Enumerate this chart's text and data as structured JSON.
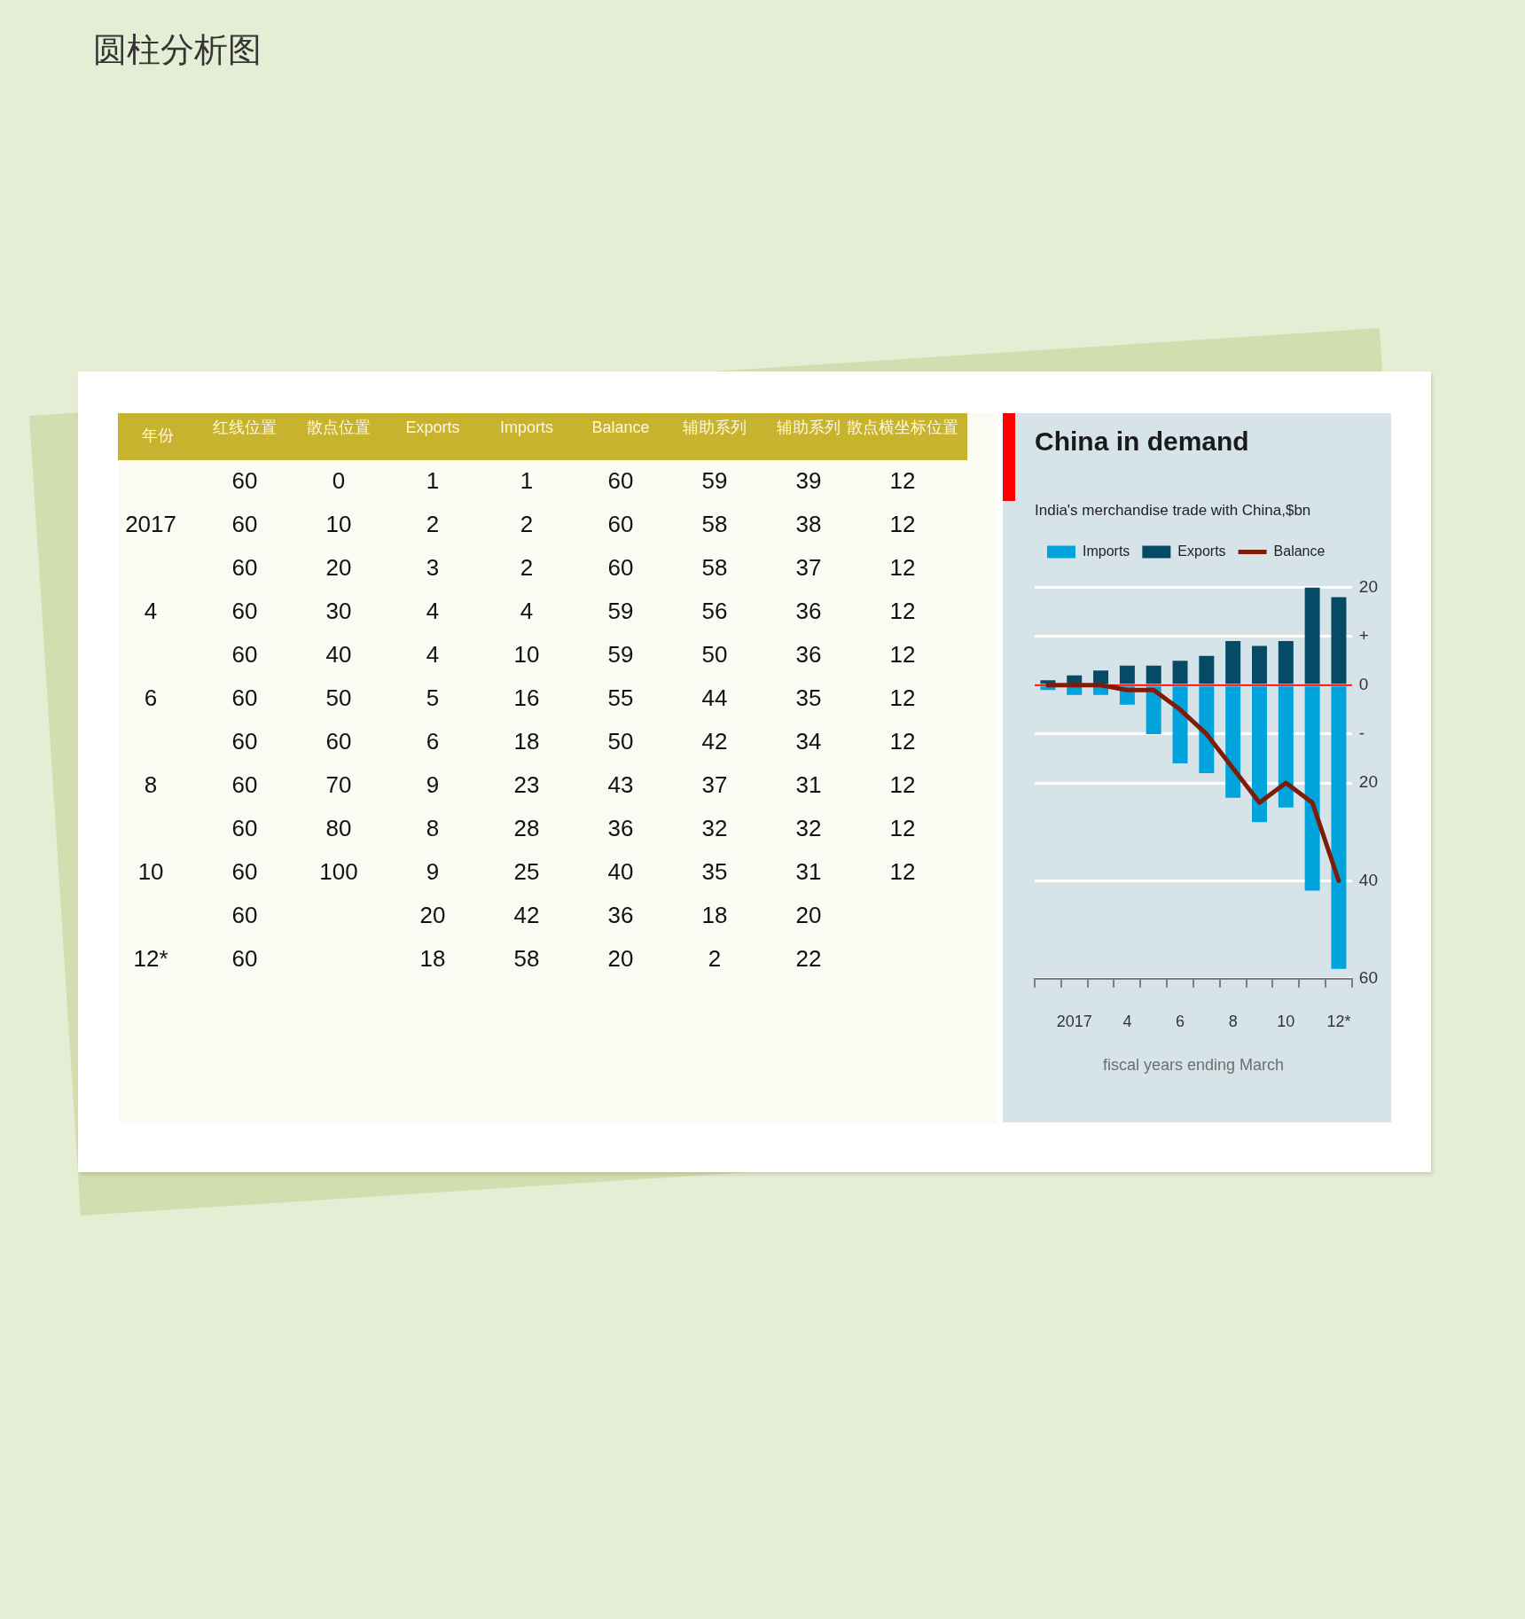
{
  "chart_data": [
    {
      "type": "heatmap",
      "title": "圆柱分析图",
      "ylabel": "年份",
      "categories": [
        "红线位置",
        "散点位置",
        "Exports",
        "Imports",
        "Balance",
        "辅助系列",
        "辅助系列",
        "散点横坐标位置"
      ],
      "y_categories": [
        null,
        "2017",
        null,
        "4",
        null,
        "6",
        null,
        "8",
        null,
        "10",
        null,
        "12*"
      ],
      "cells": [
        [
          60,
          0,
          1,
          1,
          60,
          59,
          39,
          12
        ],
        [
          60,
          10,
          2,
          2,
          60,
          58,
          38,
          12
        ],
        [
          60,
          20,
          3,
          2,
          60,
          58,
          37,
          12
        ],
        [
          60,
          30,
          4,
          4,
          59,
          56,
          36,
          12
        ],
        [
          60,
          40,
          4,
          10,
          59,
          50,
          36,
          12
        ],
        [
          60,
          50,
          5,
          16,
          55,
          44,
          35,
          12
        ],
        [
          60,
          60,
          6,
          18,
          50,
          42,
          34,
          12
        ],
        [
          60,
          70,
          9,
          23,
          43,
          37,
          31,
          12
        ],
        [
          60,
          80,
          8,
          28,
          36,
          32,
          32,
          12
        ],
        [
          60,
          100,
          9,
          25,
          40,
          35,
          31,
          12
        ],
        [
          60,
          null,
          20,
          42,
          36,
          18,
          20,
          null
        ],
        [
          60,
          null,
          18,
          58,
          20,
          2,
          22,
          null
        ]
      ],
      "color": "#fcfbf3",
      "data_labels": true
    },
    {
      "type": "bar",
      "title": "China in demand",
      "subtitle": "India's merchandise trade with China,$bn",
      "xlabel": "fiscal years ending March",
      "categories": [
        null,
        "2017",
        null,
        "4",
        null,
        "6",
        null,
        "8",
        null,
        "10",
        null,
        "12*"
      ],
      "series": [
        {
          "name": "Imports",
          "color": "#00a3dc",
          "values": [
            -1,
            -2,
            -2,
            -4,
            -10,
            -16,
            -18,
            -23,
            -28,
            -25,
            -42,
            -58
          ]
        },
        {
          "name": "Exports",
          "color": "#064b66",
          "values": [
            1,
            2,
            3,
            4,
            4,
            5,
            6,
            9,
            8,
            9,
            20,
            18
          ]
        },
        {
          "name": "Balance",
          "type": "line",
          "color": "#7e1c08",
          "values": [
            0,
            0,
            0,
            -1,
            -1,
            -5,
            -10,
            -17,
            -24,
            -20,
            -24,
            -40
          ]
        }
      ],
      "stacked": true,
      "ylim": [
        -60,
        20
      ],
      "yticks": [
        {
          "value": -60,
          "label": "60"
        },
        {
          "value": -40,
          "label": "40"
        },
        {
          "value": -20,
          "label": "20"
        },
        {
          "value": -10,
          "label": "-"
        },
        0,
        {
          "value": 10,
          "label": "+"
        },
        20
      ],
      "ref_lines": [
        {
          "axis": "y",
          "value": 0,
          "color": "#ff0000"
        }
      ],
      "grid": "y",
      "legend": "top left",
      "marker": "none",
      "line_style": "solid"
    }
  ]
}
